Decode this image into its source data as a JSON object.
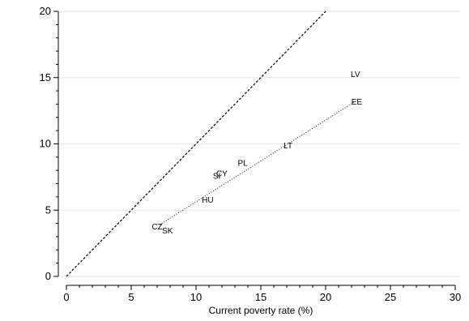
{
  "chart_data": {
    "type": "scatter",
    "title": "",
    "xlabel": "Current poverty rate (%)",
    "ylabel": "",
    "xlim": [
      0,
      30
    ],
    "ylim": [
      0,
      20
    ],
    "x_ticks": [
      0,
      5,
      10,
      15,
      20,
      25,
      30
    ],
    "y_ticks": [
      0,
      5,
      10,
      15,
      20
    ],
    "grid": "horizontal",
    "colors": {
      "text": "#000000",
      "grid": "#e6e6e6",
      "axis": "#000000"
    },
    "points": [
      {
        "label": "LV",
        "x": 22.3,
        "y": 15.3
      },
      {
        "label": "EE",
        "x": 22.4,
        "y": 13.2
      },
      {
        "label": "LT",
        "x": 17.1,
        "y": 9.9
      },
      {
        "label": "PL",
        "x": 13.6,
        "y": 8.6
      },
      {
        "label": "CY",
        "x": 12.0,
        "y": 7.8
      },
      {
        "label": "SI",
        "x": 11.6,
        "y": 7.6
      },
      {
        "label": "HU",
        "x": 10.9,
        "y": 5.8
      },
      {
        "label": "CZ",
        "x": 7.0,
        "y": 3.8
      },
      {
        "label": "SK",
        "x": 7.8,
        "y": 3.5
      }
    ],
    "reference_lines": [
      {
        "style": "dashed",
        "from": [
          0,
          0
        ],
        "to": [
          20,
          20
        ]
      },
      {
        "style": "dotted",
        "from": [
          7.2,
          3.9
        ],
        "to": [
          22.6,
          13.4
        ]
      }
    ]
  }
}
